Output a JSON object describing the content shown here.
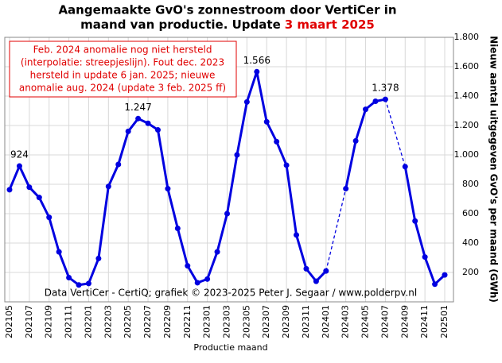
{
  "chart_data": {
    "type": "line",
    "title": "Aangemaakte GvO's zonnestroom door VertiCer in",
    "title_line2": "maand van productie. Update",
    "title_highlight": "3 maart 2025",
    "annotation": [
      "Feb. 2024 anomalie nog niet hersteld",
      "(interpolatie: streepjeslijn). Fout dec. 2023",
      "hersteld in update 6 jan. 2025; nieuwe",
      "anomalie aug. 2024 (update 3 feb. 2025 ff)"
    ],
    "credit": "Data VertiCer - CertiQ; grafiek © 2023-2025 Peter J. Segaar / www.polderpv.nl",
    "xlabel": "Productie maand",
    "ylabel": "Nieuw aantal uitgegeven GvO's per maand (GWh)",
    "categories": [
      "202105",
      null,
      "202107",
      null,
      "202109",
      null,
      "202111",
      null,
      "202201",
      null,
      "202203",
      null,
      "202205",
      null,
      "202207",
      null,
      "202209",
      null,
      "202211",
      null,
      "202301",
      null,
      "202303",
      null,
      "202305",
      null,
      "202307",
      null,
      "202309",
      null,
      "202311",
      null,
      "202401",
      null,
      "202403",
      null,
      "202405",
      null,
      "202407",
      null,
      "202409",
      null,
      "202411",
      null,
      "202501"
    ],
    "series": [
      {
        "name": "GvO's",
        "color": "#0000e0",
        "values": [
          763,
          924,
          780,
          710,
          575,
          340,
          165,
          115,
          125,
          295,
          785,
          935,
          1160,
          1247,
          1215,
          1170,
          770,
          500,
          245,
          130,
          155,
          340,
          600,
          1000,
          1360,
          1566,
          1225,
          1090,
          930,
          455,
          225,
          140,
          210,
          null,
          770,
          1095,
          1310,
          1365,
          1378,
          null,
          920,
          550,
          305,
          120,
          183
        ],
        "value_labels": [
          null,
          "924",
          null,
          null,
          null,
          null,
          null,
          null,
          null,
          null,
          null,
          null,
          null,
          "1.247",
          null,
          null,
          null,
          null,
          null,
          null,
          null,
          null,
          null,
          null,
          null,
          "1.566",
          null,
          null,
          null,
          null,
          null,
          null,
          null,
          null,
          null,
          null,
          null,
          null,
          "1.378",
          null,
          null,
          null,
          null,
          null,
          null
        ]
      }
    ],
    "interpolate_gaps": true,
    "ylim": [
      0,
      1800
    ],
    "yticks": [
      200,
      400,
      600,
      800,
      {
        "value": 1000,
        "label": "1.000"
      },
      {
        "value": 1200,
        "label": "1.200"
      },
      {
        "value": 1400,
        "label": "1.400"
      },
      {
        "value": 1600,
        "label": "1.600"
      },
      {
        "value": 1800,
        "label": "1.800"
      }
    ],
    "grid": true
  }
}
